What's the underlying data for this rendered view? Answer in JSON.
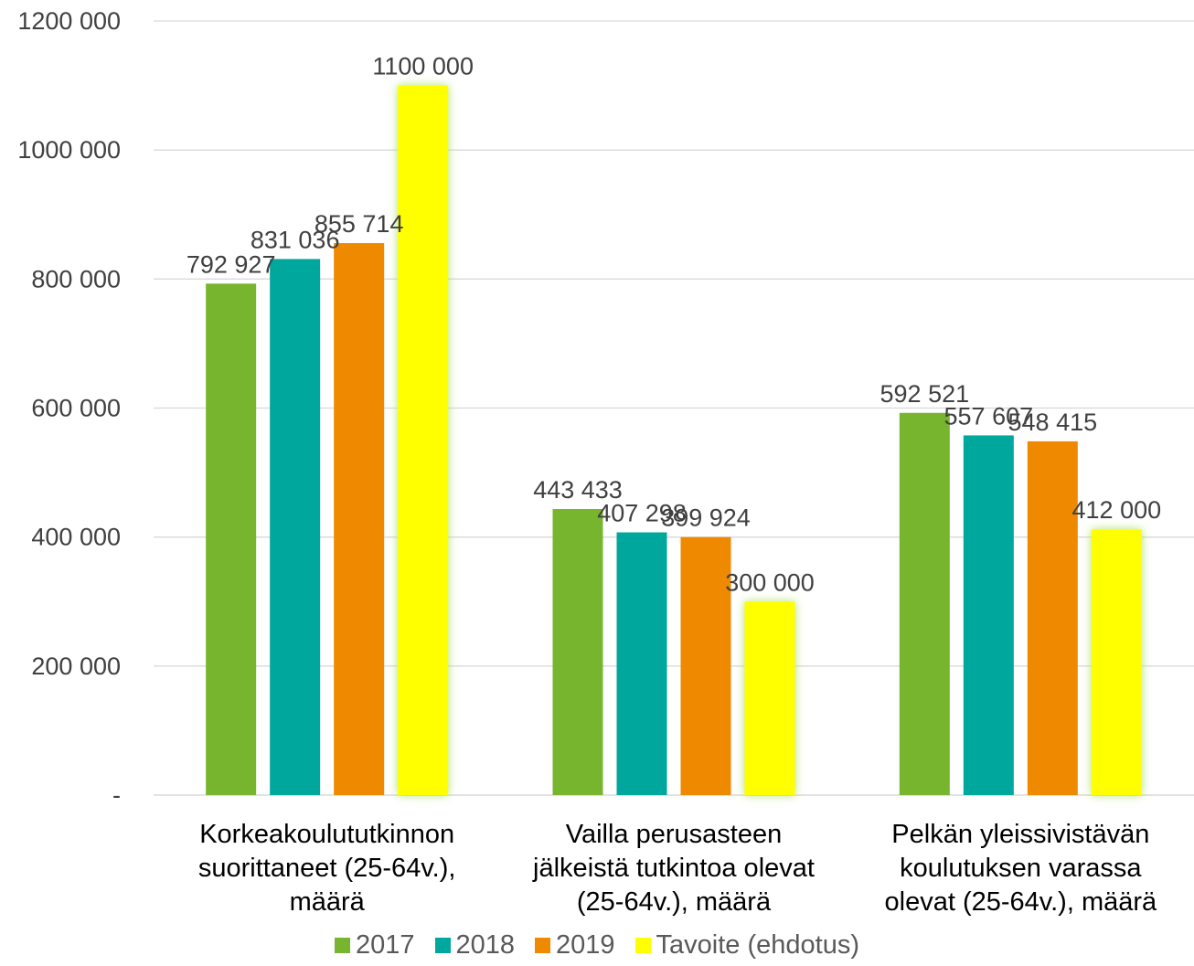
{
  "chart_data": {
    "type": "bar",
    "ylim": [
      0,
      1200000
    ],
    "y_ticks": [
      {
        "value": 0,
        "label": "-"
      },
      {
        "value": 200000,
        "label": "200 000"
      },
      {
        "value": 400000,
        "label": "400 000"
      },
      {
        "value": 600000,
        "label": "600 000"
      },
      {
        "value": 800000,
        "label": "800 000"
      },
      {
        "value": 1000000,
        "label": "1000 000"
      },
      {
        "value": 1200000,
        "label": "1200 000"
      }
    ],
    "grid": true,
    "legend_position": "bottom",
    "categories": [
      [
        "Korkeakoulututkinnon",
        "suorittaneet (25-64v.),",
        "määrä"
      ],
      [
        "Vailla perusasteen",
        "jälkeistä tutkintoa olevat",
        "(25-64v.), määrä"
      ],
      [
        "Pelkän yleissivistävän",
        "koulutuksen varassa",
        "olevat (25-64v.), määrä"
      ]
    ],
    "series": [
      {
        "name": "2017",
        "color": "#78b52e",
        "values": [
          792927,
          443433,
          592521
        ],
        "labels": [
          "792 927",
          "443 433",
          "592 521"
        ]
      },
      {
        "name": "2018",
        "color": "#00a79d",
        "values": [
          831036,
          407298,
          557607
        ],
        "labels": [
          "831 036",
          "407 298",
          "557 607"
        ]
      },
      {
        "name": "2019",
        "color": "#ef8a00",
        "values": [
          855714,
          399924,
          548415
        ],
        "labels": [
          "855 714",
          "399 924",
          "548 415"
        ]
      },
      {
        "name": "Tavoite (ehdotus)",
        "color": "#ffff00",
        "glow": true,
        "values": [
          1100000,
          300000,
          412000
        ],
        "labels": [
          "1100 000",
          "300 000",
          "412 000"
        ]
      }
    ]
  }
}
